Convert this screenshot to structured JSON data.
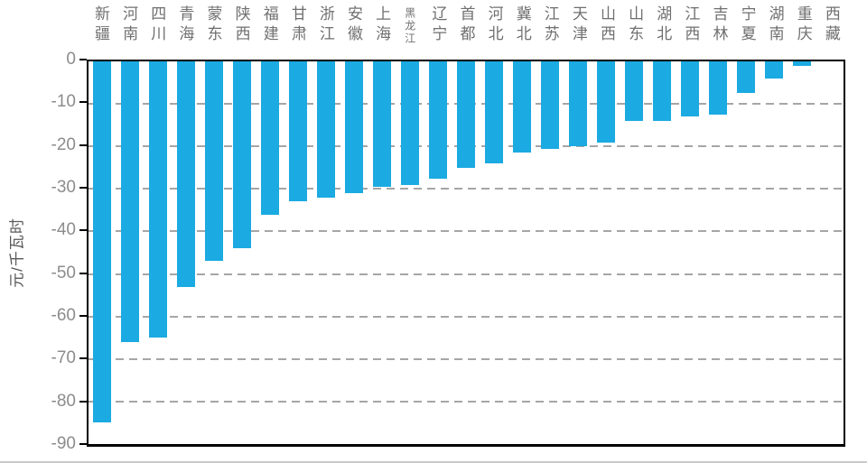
{
  "chart_data": {
    "type": "bar",
    "title": "",
    "xlabel": "",
    "ylabel": "元/千瓦时",
    "ylim": [
      -90,
      0
    ],
    "yticks": [
      0,
      -10,
      -20,
      -30,
      -40,
      -50,
      -60,
      -70,
      -80,
      -90
    ],
    "grid": "horizontal-dashed",
    "legend": "none",
    "bar_color": "#1baae1",
    "grid_color": "#a6a6a6",
    "axis_frame_color": "#000000",
    "tick_label_color": "#8c8c8c",
    "category_label_color": "#6f6f6f",
    "categories": [
      "新疆",
      "河南",
      "四川",
      "青海",
      "蒙东",
      "陕西",
      "福建",
      "甘肃",
      "浙江",
      "安徽",
      "上海",
      "黑龙江",
      "辽宁",
      "首都",
      "河北",
      "冀北",
      "江苏",
      "天津",
      "山西",
      "山东",
      "湖北",
      "江西",
      "吉林",
      "宁夏",
      "湖南",
      "重庆",
      "西藏"
    ],
    "values": [
      -85,
      -66,
      -65,
      -53,
      -47,
      -44,
      -36,
      -33,
      -32,
      -31,
      -29.5,
      -29,
      -27.5,
      -25,
      -24,
      -21.5,
      -20.5,
      -20,
      -19,
      -14,
      -14,
      -13,
      -12.5,
      -7.5,
      -4,
      -1,
      0
    ]
  }
}
